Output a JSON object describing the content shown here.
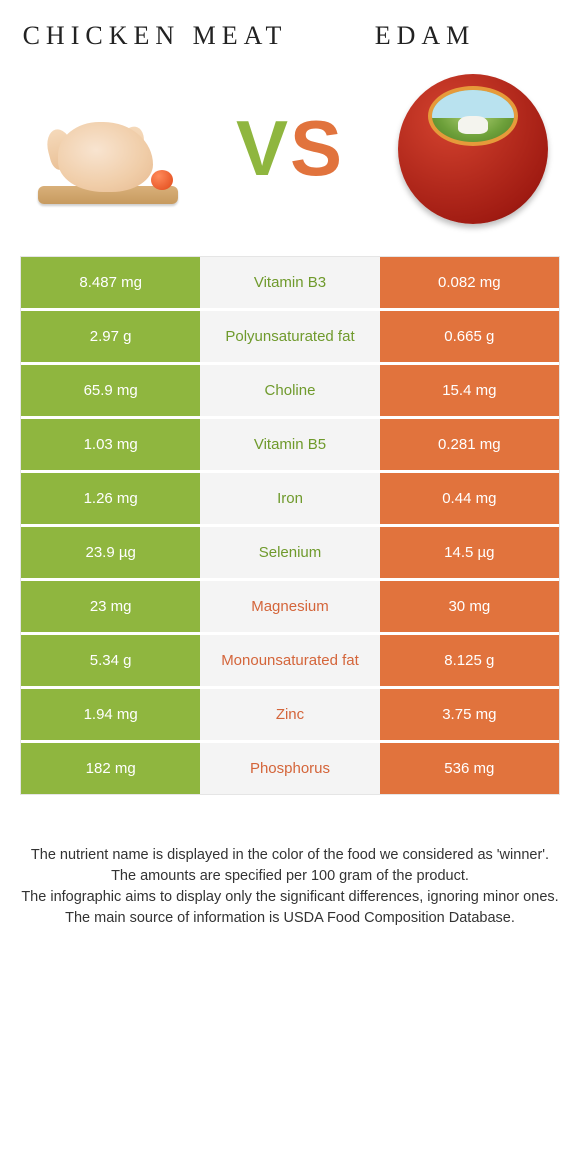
{
  "header": {
    "left_title": "Chicken meat",
    "right_title": "Edam"
  },
  "vs": {
    "v": "V",
    "s": "S"
  },
  "colors": {
    "green": "#8fb63f",
    "orange": "#e1733d",
    "mid_bg": "#f4f4f4",
    "mid_green": "#6f9a2c",
    "mid_orange": "#d4653a",
    "border": "#e5e5e5"
  },
  "rows": [
    {
      "left": "8.487 mg",
      "name": "Vitamin B3",
      "winner": "green",
      "right": "0.082 mg"
    },
    {
      "left": "2.97 g",
      "name": "Polyunsaturated fat",
      "winner": "green",
      "right": "0.665 g"
    },
    {
      "left": "65.9 mg",
      "name": "Choline",
      "winner": "green",
      "right": "15.4 mg"
    },
    {
      "left": "1.03 mg",
      "name": "Vitamin B5",
      "winner": "green",
      "right": "0.281 mg"
    },
    {
      "left": "1.26 mg",
      "name": "Iron",
      "winner": "green",
      "right": "0.44 mg"
    },
    {
      "left": "23.9 µg",
      "name": "Selenium",
      "winner": "green",
      "right": "14.5 µg"
    },
    {
      "left": "23 mg",
      "name": "Magnesium",
      "winner": "orange",
      "right": "30 mg"
    },
    {
      "left": "5.34 g",
      "name": "Monounsaturated fat",
      "winner": "orange",
      "right": "8.125 g"
    },
    {
      "left": "1.94 mg",
      "name": "Zinc",
      "winner": "orange",
      "right": "3.75 mg"
    },
    {
      "left": "182 mg",
      "name": "Phosphorus",
      "winner": "orange",
      "right": "536 mg"
    }
  ],
  "footnotes": [
    "The nutrient name is displayed in the color of the food we considered as 'winner'.",
    "The amounts are specified per 100 gram of the product.",
    "The infographic aims to display only the significant differences, ignoring minor ones.",
    "The main source of information is USDA Food Composition Database."
  ]
}
